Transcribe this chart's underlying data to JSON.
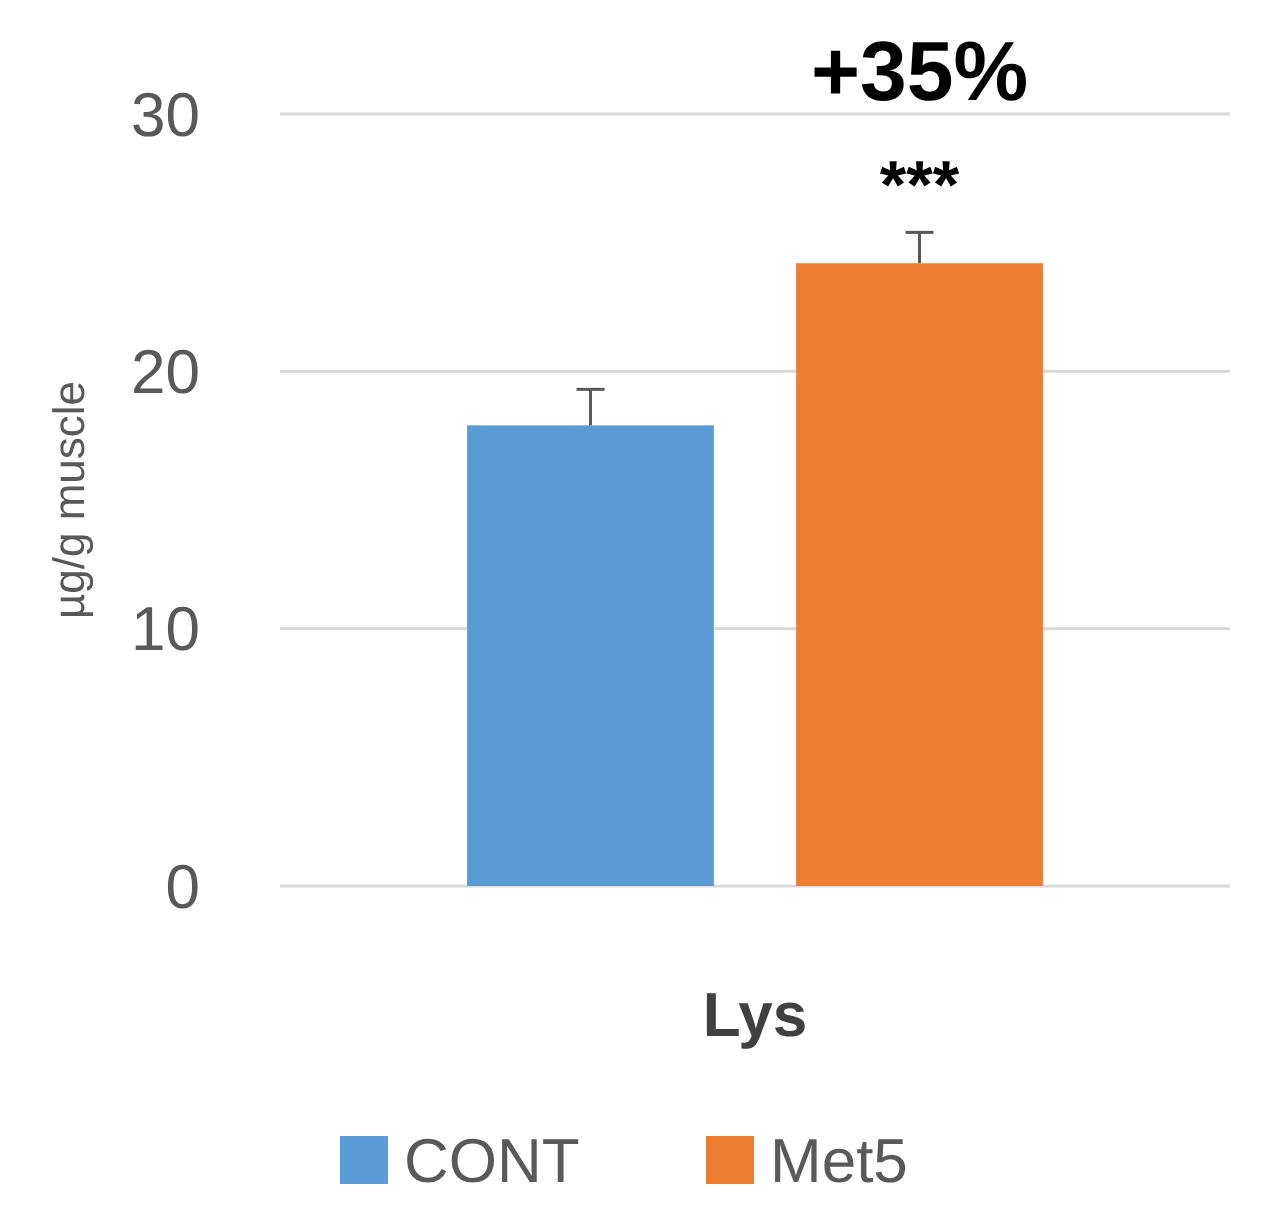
{
  "chart_data": {
    "type": "bar",
    "ylabel": "µg/g muscle",
    "categories": [
      "Lys"
    ],
    "series": [
      {
        "name": "CONT",
        "color": "#5b9bd5",
        "values": [
          17.9
        ],
        "errors": [
          [
            17.9,
            19.3
          ]
        ]
      },
      {
        "name": "Met5",
        "color": "#ed7d31",
        "values": [
          24.2
        ],
        "errors": [
          [
            24.2,
            25.4
          ]
        ]
      }
    ],
    "ylim": [
      0,
      30
    ],
    "yticks": [
      0,
      10,
      20,
      30
    ],
    "grid": "y",
    "legend": "bottom",
    "annotations": [
      "+35%",
      "***"
    ]
  }
}
